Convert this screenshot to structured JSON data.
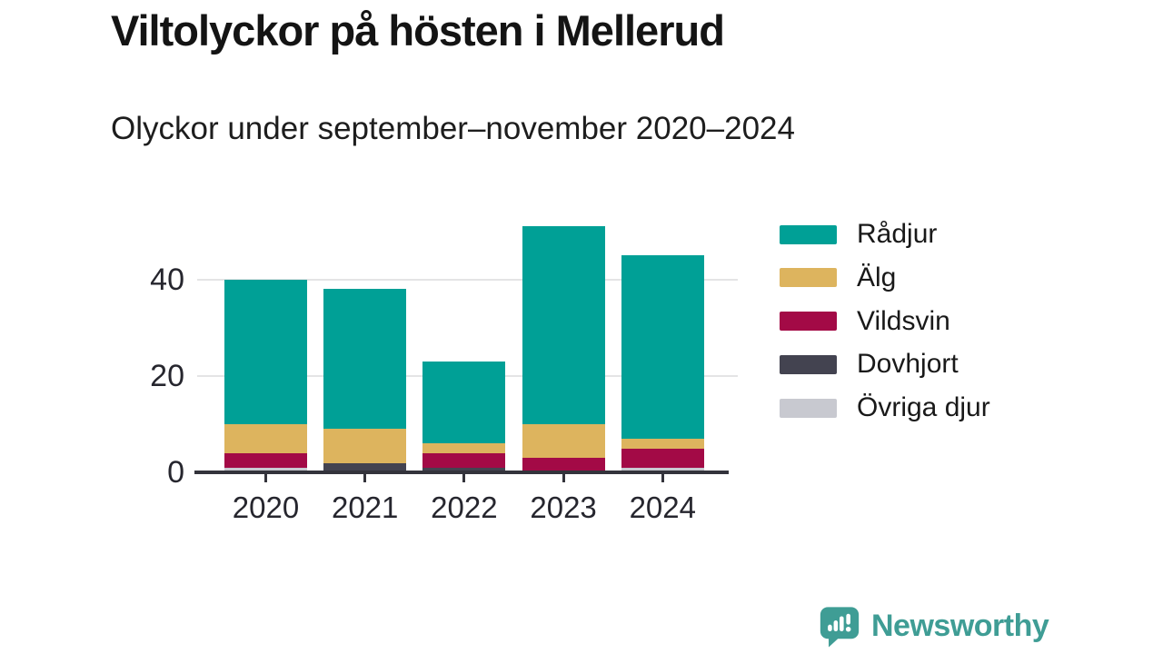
{
  "header": {
    "title": "Viltolyckor på hösten i Mellerud",
    "subtitle": "Olyckor under september–november 2020–2024"
  },
  "chart_data": {
    "type": "bar",
    "stacked": true,
    "title": "Viltolyckor på hösten i Mellerud",
    "subtitle": "Olyckor under september–november 2020–2024",
    "categories": [
      "2020",
      "2021",
      "2022",
      "2023",
      "2024"
    ],
    "series": [
      {
        "name": "Rådjur",
        "color": "#00a096",
        "values": [
          30,
          29,
          17,
          41,
          38
        ]
      },
      {
        "name": "Älg",
        "color": "#ddb45e",
        "values": [
          6,
          7,
          2,
          7,
          2
        ]
      },
      {
        "name": "Vildsvin",
        "color": "#a30a46",
        "values": [
          3,
          0,
          3,
          3,
          4
        ]
      },
      {
        "name": "Dovhjort",
        "color": "#434350",
        "values": [
          0,
          2,
          1,
          0,
          0
        ]
      },
      {
        "name": "Övriga djur",
        "color": "#c8c9d0",
        "values": [
          1,
          0,
          0,
          0,
          1
        ]
      }
    ],
    "y_ticks": [
      0,
      20,
      40
    ],
    "ylim": [
      0,
      52
    ],
    "xlabel": "",
    "ylabel": "",
    "grid": "horizontal",
    "legend_position": "right",
    "axis_color": "#33333b",
    "gridline_color": "#e4e4e5"
  },
  "footer": {
    "brand": "Newsworthy",
    "logo_icon": "newsworthy-speech-bubble-bar-chart-icon"
  }
}
